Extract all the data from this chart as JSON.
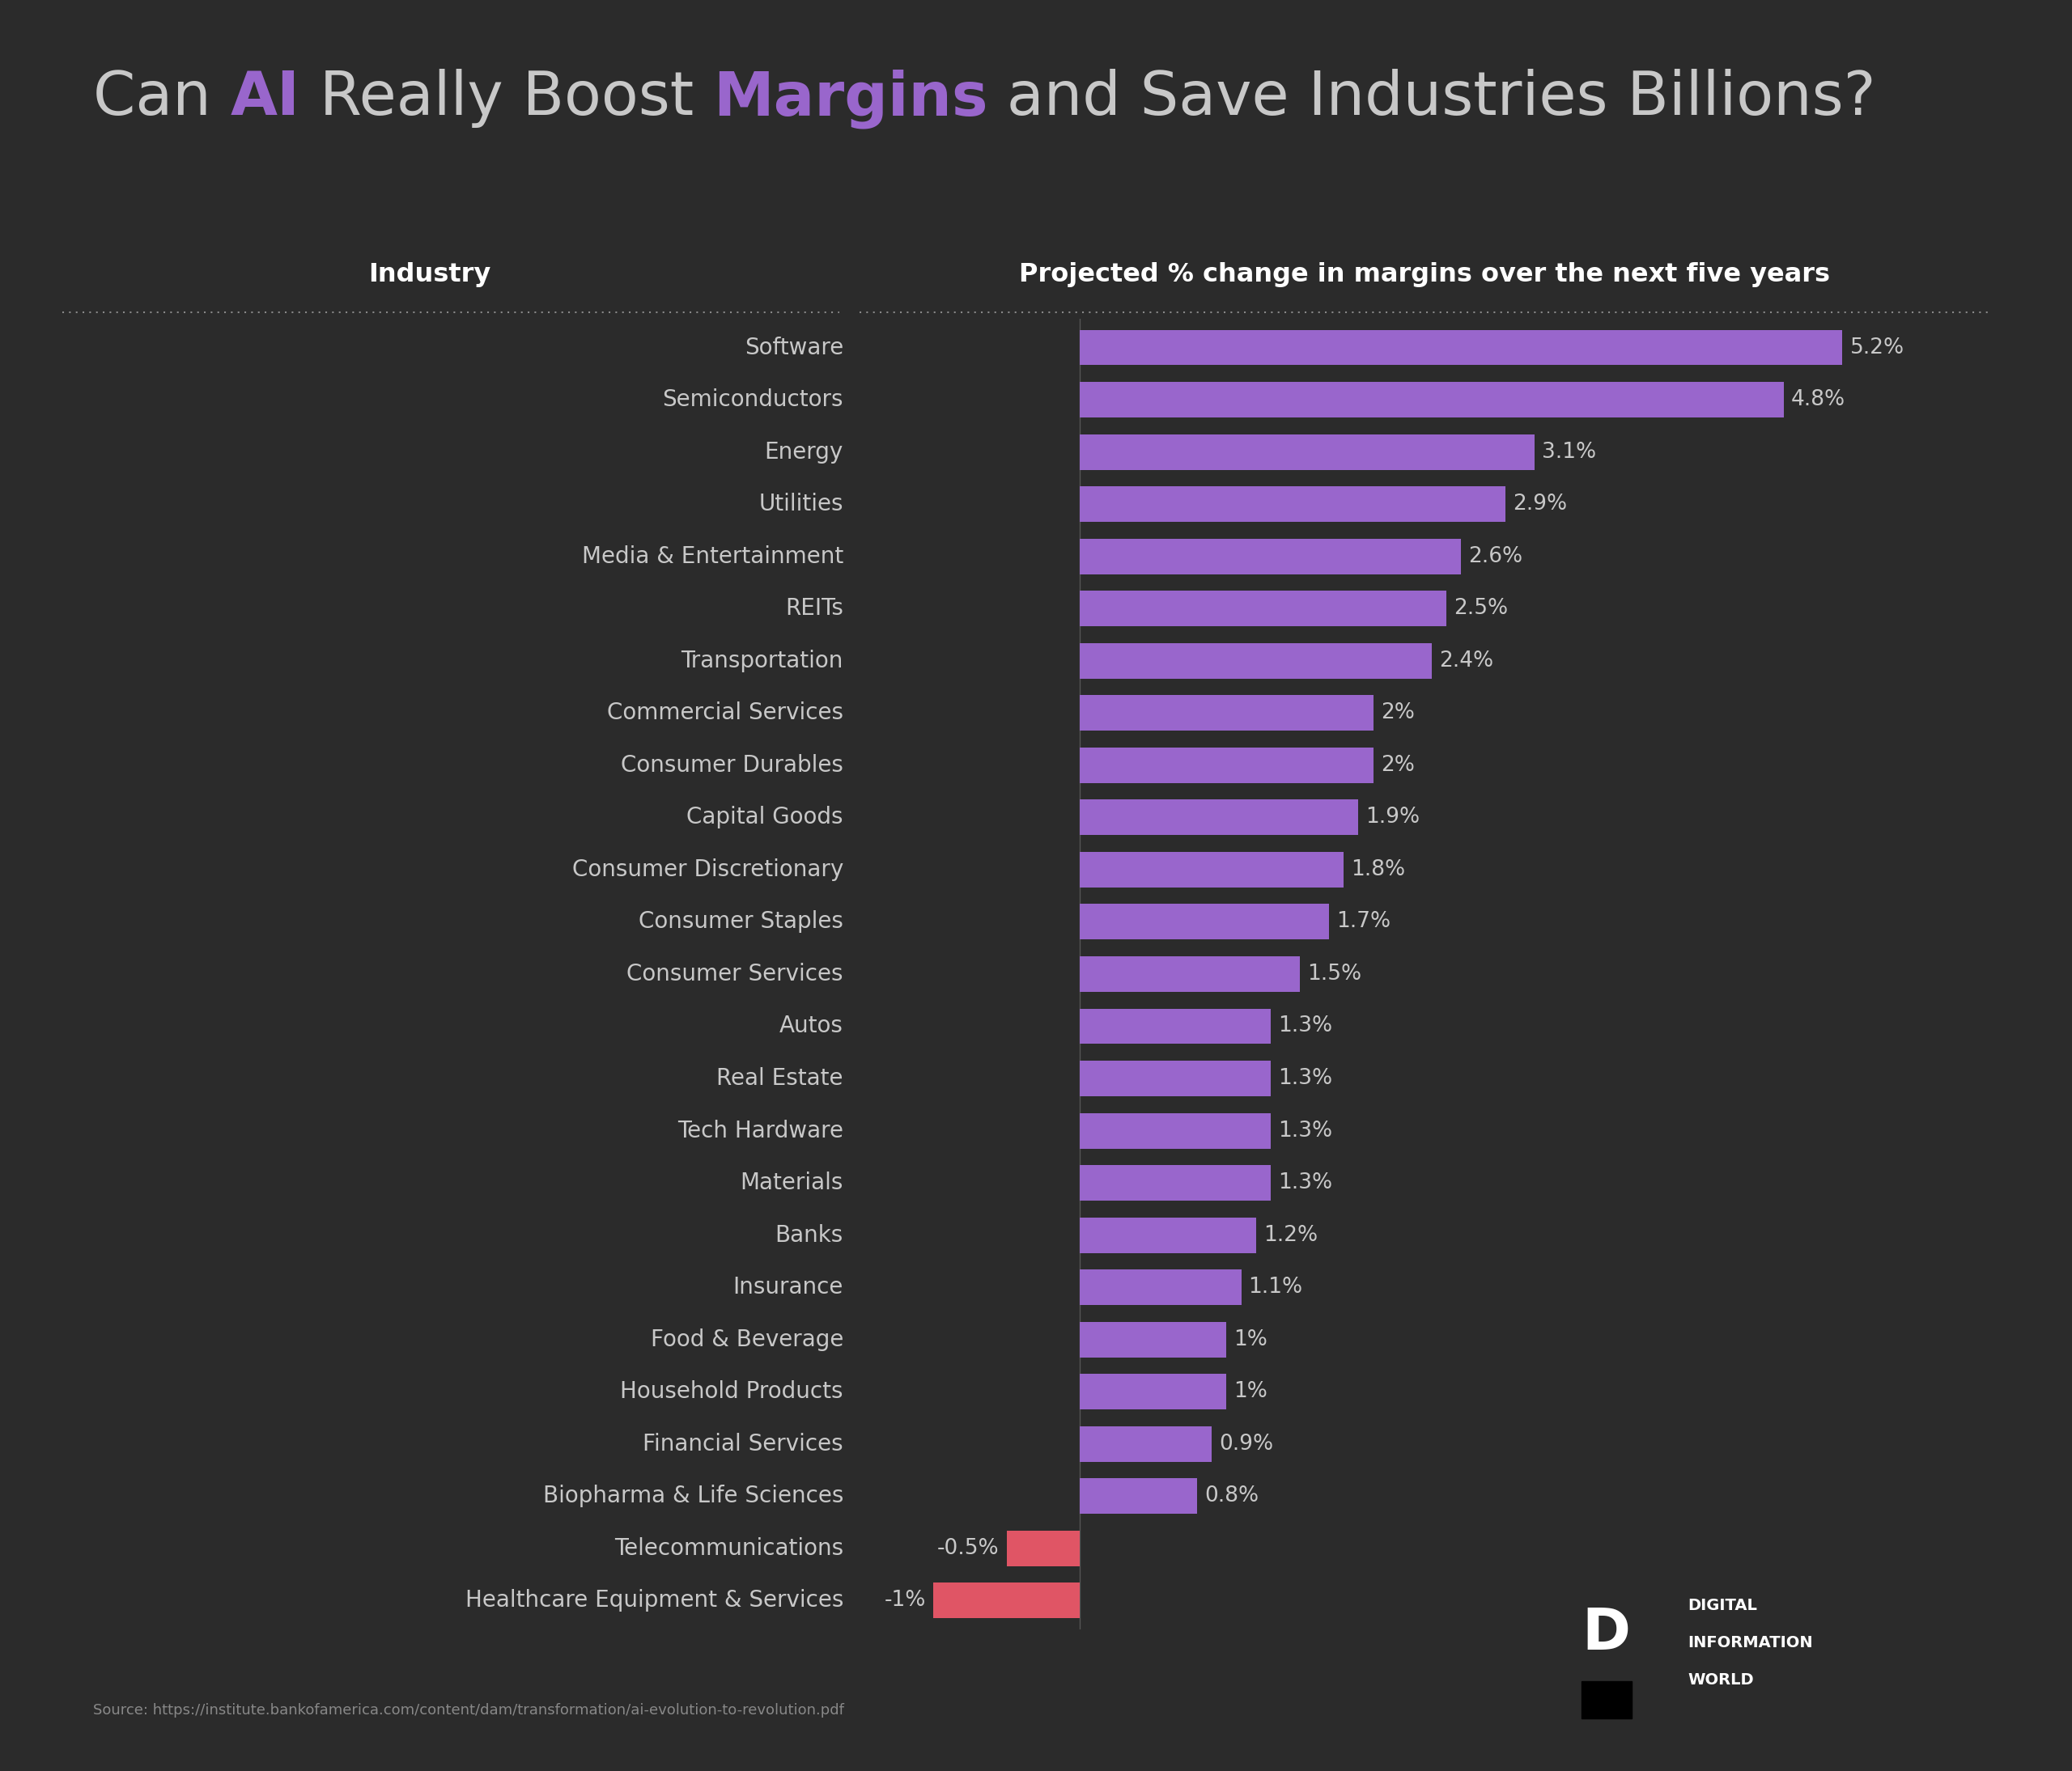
{
  "title_parts": [
    {
      "text": "Can ",
      "color": "#c8c8c8",
      "bold": false
    },
    {
      "text": "AI",
      "color": "#9966cc",
      "bold": true
    },
    {
      "text": " Really Boost ",
      "color": "#c8c8c8",
      "bold": false
    },
    {
      "text": "Margins",
      "color": "#9966cc",
      "bold": true
    },
    {
      "text": " and Save Industries Billions?",
      "color": "#c8c8c8",
      "bold": false
    }
  ],
  "col_header_left": "Industry",
  "col_header_right": "Projected % change in margins over the next five years",
  "categories": [
    "Software",
    "Semiconductors",
    "Energy",
    "Utilities",
    "Media & Entertainment",
    "REITs",
    "Transportation",
    "Commercial Services",
    "Consumer Durables",
    "Capital Goods",
    "Consumer Discretionary",
    "Consumer Staples",
    "Consumer Services",
    "Autos",
    "Real Estate",
    "Tech Hardware",
    "Materials",
    "Banks",
    "Insurance",
    "Food & Beverage",
    "Household Products",
    "Financial Services",
    "Biopharma & Life Sciences",
    "Telecommunications",
    "Healthcare Equipment & Services"
  ],
  "values": [
    5.2,
    4.8,
    3.1,
    2.9,
    2.6,
    2.5,
    2.4,
    2.0,
    2.0,
    1.9,
    1.8,
    1.7,
    1.5,
    1.3,
    1.3,
    1.3,
    1.3,
    1.2,
    1.1,
    1.0,
    1.0,
    0.9,
    0.8,
    -0.5,
    -1.0
  ],
  "value_labels": [
    "5.2%",
    "4.8%",
    "3.1%",
    "2.9%",
    "2.6%",
    "2.5%",
    "2.4%",
    "2%",
    "2%",
    "1.9%",
    "1.8%",
    "1.7%",
    "1.5%",
    "1.3%",
    "1.3%",
    "1.3%",
    "1.3%",
    "1.2%",
    "1.1%",
    "1%",
    "1%",
    "0.9%",
    "0.8%",
    "-0.5%",
    "-1%"
  ],
  "bar_color_positive": "#9966cc",
  "bar_color_negative": "#e05565",
  "background_color": "#2b2b2b",
  "text_color": "#c8c8c8",
  "header_color": "#ffffff",
  "source_text": "Source: https://institute.bankofamerica.com/content/dam/transformation/ai-evolution-to-revolution.pdf",
  "title_fontsize": 54,
  "label_fontsize": 20,
  "header_fontsize": 23,
  "value_fontsize": 19
}
